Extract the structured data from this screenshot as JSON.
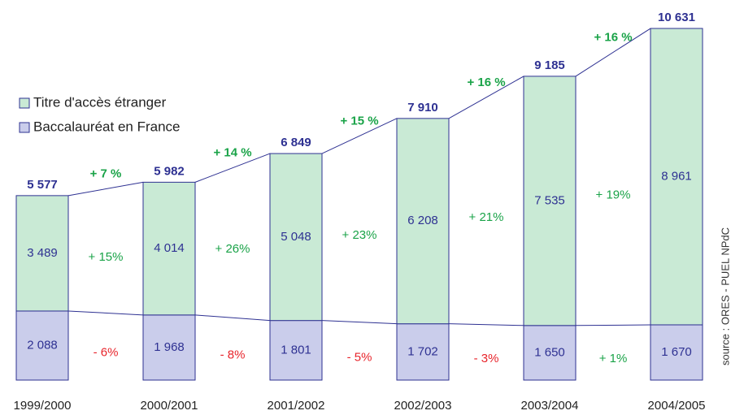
{
  "chart_data": {
    "type": "stacked_bar",
    "categories": [
      "1999/2000",
      "2000/2001",
      "2001/2002",
      "2002/2003",
      "2003/2004",
      "2004/2005"
    ],
    "series": [
      {
        "name": "Baccalauréat en France",
        "color": "#cacdeb",
        "values": [
          2088,
          1968,
          1801,
          1702,
          1650,
          1670
        ],
        "value_labels": [
          "2 088",
          "1 968",
          "1 801",
          "1 702",
          "1 650",
          "1 670"
        ],
        "growth_labels": [
          "- 6%",
          "- 8%",
          "- 5%",
          "- 3%",
          "+ 1%"
        ],
        "growth_colors": [
          "#e8242b",
          "#e8242b",
          "#e8242b",
          "#e8242b",
          "#1aa348"
        ]
      },
      {
        "name": "Titre d'accès étranger",
        "color": "#c9ead5",
        "values": [
          3489,
          4014,
          5048,
          6208,
          7535,
          8961
        ],
        "value_labels": [
          "3 489",
          "4 014",
          "5 048",
          "6 208",
          "7 535",
          "8 961"
        ],
        "growth_labels": [
          "+ 15%",
          "+ 26%",
          "+ 23%",
          "+ 21%",
          "+ 19%"
        ],
        "growth_colors": [
          "#1aa348",
          "#1aa348",
          "#1aa348",
          "#1aa348",
          "#1aa348"
        ]
      }
    ],
    "totals": [
      5577,
      5982,
      6849,
      7910,
      9185,
      10631
    ],
    "total_labels": [
      "5 577",
      "5 982",
      "6 849",
      "7 910",
      "9 185",
      "10 631"
    ],
    "total_growth_labels": [
      "+ 7 %",
      "+ 14 %",
      "+ 15 %",
      "+ 16 %",
      "+ 16 %"
    ],
    "ylim": [
      0,
      11000
    ],
    "source": "source : ORES - PUEL NPdC"
  }
}
